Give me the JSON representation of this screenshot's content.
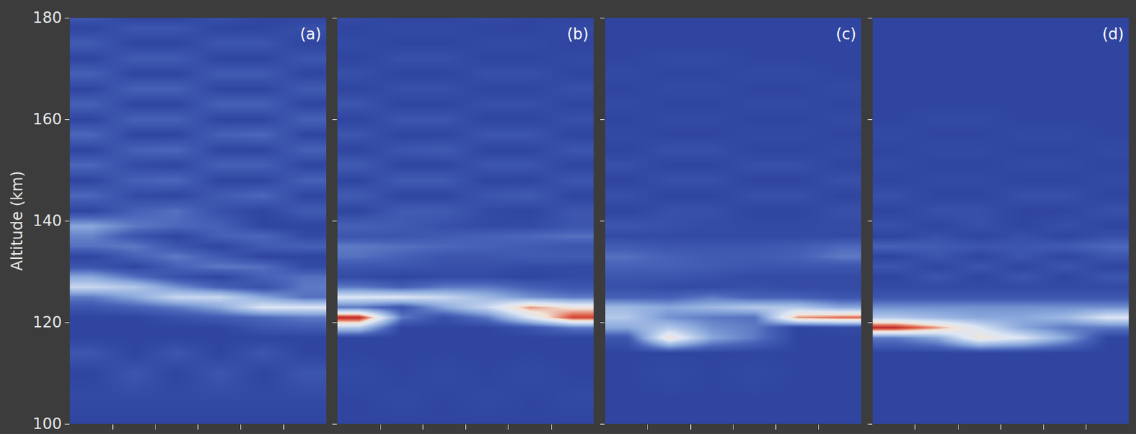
{
  "chart_data": {
    "type": "heatmap",
    "ylabel": "Altitude (km)",
    "ylim": [
      100,
      180
    ],
    "yticks": [
      100,
      120,
      140,
      160,
      180
    ],
    "xlim": [
      0,
      6
    ],
    "xticks": [
      1,
      2,
      3,
      4,
      5
    ],
    "tick_labels": "y",
    "zlim": [
      0,
      100
    ],
    "x": [
      0.5,
      1.5,
      2.5,
      3.5,
      4.5,
      5.5
    ],
    "y": [
      100,
      105,
      110,
      114,
      117,
      119,
      121,
      123,
      125,
      127,
      129,
      131,
      133,
      135,
      137,
      139,
      142,
      145,
      148,
      151,
      154,
      157,
      160,
      163,
      166,
      169,
      172,
      175,
      178,
      180
    ],
    "panels": [
      {
        "label": "(a)",
        "z": [
          [
            14,
            14,
            14,
            14,
            14,
            14
          ],
          [
            16,
            16,
            16,
            16,
            16,
            16
          ],
          [
            14,
            20,
            14,
            20,
            14,
            20
          ],
          [
            20,
            14,
            20,
            14,
            20,
            14
          ],
          [
            14,
            14,
            14,
            14,
            14,
            14
          ],
          [
            14,
            14,
            14,
            14,
            20,
            22
          ],
          [
            14,
            14,
            18,
            22,
            26,
            30
          ],
          [
            20,
            24,
            30,
            40,
            60,
            60
          ],
          [
            30,
            40,
            55,
            55,
            40,
            28
          ],
          [
            55,
            50,
            35,
            24,
            18,
            30
          ],
          [
            40,
            28,
            18,
            14,
            24,
            28
          ],
          [
            20,
            14,
            24,
            30,
            28,
            16
          ],
          [
            14,
            24,
            30,
            22,
            14,
            14
          ],
          [
            28,
            30,
            20,
            14,
            22,
            24
          ],
          [
            32,
            20,
            14,
            24,
            26,
            16
          ],
          [
            40,
            30,
            26,
            24,
            14,
            14
          ],
          [
            14,
            24,
            28,
            18,
            14,
            22
          ],
          [
            26,
            16,
            14,
            22,
            26,
            14
          ],
          [
            14,
            24,
            26,
            14,
            14,
            24
          ],
          [
            26,
            16,
            14,
            24,
            24,
            14
          ],
          [
            14,
            24,
            26,
            14,
            14,
            24
          ],
          [
            26,
            14,
            14,
            24,
            26,
            14
          ],
          [
            14,
            24,
            24,
            14,
            14,
            24
          ],
          [
            24,
            14,
            14,
            24,
            24,
            14
          ],
          [
            14,
            24,
            24,
            14,
            14,
            22
          ],
          [
            24,
            14,
            14,
            22,
            22,
            14
          ],
          [
            14,
            22,
            22,
            14,
            14,
            20
          ],
          [
            22,
            14,
            14,
            20,
            20,
            14
          ],
          [
            14,
            20,
            20,
            14,
            14,
            18
          ],
          [
            20,
            14,
            14,
            18,
            14,
            14
          ]
        ]
      },
      {
        "label": "(b)",
        "z": [
          [
            14,
            14,
            14,
            14,
            14,
            14
          ],
          [
            14,
            16,
            14,
            16,
            14,
            16
          ],
          [
            16,
            14,
            16,
            14,
            16,
            14
          ],
          [
            14,
            14,
            14,
            14,
            14,
            14
          ],
          [
            14,
            14,
            14,
            14,
            14,
            14
          ],
          [
            50,
            14,
            14,
            14,
            20,
            30
          ],
          [
            95,
            30,
            18,
            30,
            60,
            90
          ],
          [
            30,
            20,
            40,
            55,
            80,
            70
          ],
          [
            60,
            60,
            55,
            45,
            35,
            30
          ],
          [
            30,
            24,
            30,
            30,
            24,
            20
          ],
          [
            16,
            14,
            16,
            16,
            14,
            16
          ],
          [
            20,
            20,
            18,
            18,
            16,
            16
          ],
          [
            28,
            24,
            20,
            20,
            22,
            22
          ],
          [
            30,
            28,
            26,
            24,
            22,
            20
          ],
          [
            20,
            20,
            22,
            24,
            26,
            28
          ],
          [
            24,
            22,
            18,
            16,
            16,
            20
          ],
          [
            14,
            22,
            22,
            16,
            14,
            20
          ],
          [
            22,
            14,
            14,
            20,
            22,
            14
          ],
          [
            14,
            22,
            22,
            14,
            14,
            20
          ],
          [
            22,
            14,
            14,
            20,
            20,
            14
          ],
          [
            14,
            20,
            22,
            14,
            14,
            20
          ],
          [
            20,
            14,
            14,
            20,
            20,
            14
          ],
          [
            14,
            20,
            20,
            14,
            14,
            18
          ],
          [
            20,
            14,
            14,
            18,
            18,
            14
          ],
          [
            14,
            18,
            18,
            14,
            14,
            18
          ],
          [
            18,
            14,
            14,
            18,
            18,
            14
          ],
          [
            14,
            18,
            18,
            14,
            14,
            16
          ],
          [
            16,
            14,
            14,
            16,
            16,
            14
          ],
          [
            14,
            16,
            16,
            14,
            14,
            16
          ],
          [
            16,
            14,
            14,
            16,
            14,
            14
          ]
        ]
      },
      {
        "label": "(c)",
        "z": [
          [
            14,
            14,
            14,
            14,
            14,
            14
          ],
          [
            14,
            14,
            14,
            14,
            14,
            14
          ],
          [
            14,
            16,
            14,
            16,
            14,
            14
          ],
          [
            14,
            14,
            14,
            14,
            14,
            14
          ],
          [
            20,
            70,
            40,
            30,
            14,
            14
          ],
          [
            40,
            50,
            35,
            30,
            14,
            16
          ],
          [
            50,
            35,
            30,
            28,
            80,
            85
          ],
          [
            45,
            40,
            45,
            50,
            50,
            40
          ],
          [
            24,
            24,
            30,
            24,
            24,
            20
          ],
          [
            18,
            16,
            16,
            18,
            16,
            16
          ],
          [
            20,
            20,
            18,
            16,
            16,
            16
          ],
          [
            24,
            24,
            22,
            20,
            20,
            20
          ],
          [
            28,
            24,
            22,
            22,
            24,
            30
          ],
          [
            22,
            20,
            20,
            20,
            22,
            26
          ],
          [
            16,
            16,
            16,
            16,
            16,
            16
          ],
          [
            20,
            18,
            16,
            16,
            16,
            16
          ],
          [
            14,
            18,
            18,
            14,
            14,
            18
          ],
          [
            18,
            14,
            14,
            18,
            18,
            14
          ],
          [
            14,
            18,
            18,
            14,
            14,
            18
          ],
          [
            18,
            14,
            14,
            18,
            18,
            14
          ],
          [
            14,
            18,
            18,
            14,
            14,
            16
          ],
          [
            16,
            14,
            14,
            16,
            16,
            14
          ],
          [
            14,
            16,
            16,
            14,
            14,
            16
          ],
          [
            16,
            14,
            14,
            16,
            16,
            14
          ],
          [
            14,
            16,
            16,
            14,
            14,
            16
          ],
          [
            16,
            14,
            14,
            16,
            16,
            14
          ],
          [
            14,
            16,
            16,
            14,
            14,
            14
          ],
          [
            14,
            14,
            14,
            14,
            14,
            14
          ],
          [
            14,
            14,
            14,
            14,
            14,
            14
          ],
          [
            14,
            14,
            14,
            14,
            14,
            14
          ]
        ]
      },
      {
        "label": "(d)",
        "z": [
          [
            14,
            14,
            14,
            14,
            14,
            14
          ],
          [
            14,
            14,
            14,
            14,
            14,
            14
          ],
          [
            14,
            14,
            14,
            14,
            14,
            14
          ],
          [
            14,
            14,
            14,
            14,
            14,
            14
          ],
          [
            30,
            40,
            70,
            60,
            40,
            14
          ],
          [
            95,
            80,
            60,
            40,
            30,
            30
          ],
          [
            50,
            45,
            40,
            40,
            45,
            60
          ],
          [
            35,
            35,
            35,
            35,
            35,
            35
          ],
          [
            20,
            20,
            20,
            20,
            20,
            20
          ],
          [
            16,
            16,
            16,
            16,
            16,
            16
          ],
          [
            14,
            20,
            14,
            20,
            14,
            20
          ],
          [
            20,
            14,
            20,
            14,
            20,
            14
          ],
          [
            14,
            20,
            14,
            20,
            14,
            20
          ],
          [
            24,
            22,
            20,
            20,
            22,
            26
          ],
          [
            14,
            18,
            14,
            18,
            14,
            18
          ],
          [
            18,
            14,
            18,
            14,
            18,
            14
          ],
          [
            14,
            18,
            18,
            14,
            14,
            18
          ],
          [
            18,
            14,
            14,
            18,
            18,
            14
          ],
          [
            14,
            16,
            16,
            14,
            14,
            16
          ],
          [
            16,
            14,
            14,
            16,
            16,
            14
          ],
          [
            14,
            16,
            16,
            14,
            14,
            16
          ],
          [
            16,
            14,
            14,
            16,
            16,
            14
          ],
          [
            14,
            16,
            16,
            14,
            14,
            14
          ],
          [
            14,
            14,
            14,
            14,
            14,
            14
          ],
          [
            14,
            14,
            14,
            14,
            14,
            14
          ],
          [
            14,
            14,
            14,
            14,
            14,
            14
          ],
          [
            14,
            14,
            14,
            14,
            14,
            14
          ],
          [
            14,
            14,
            14,
            14,
            14,
            14
          ],
          [
            14,
            14,
            14,
            14,
            14,
            14
          ],
          [
            14,
            14,
            14,
            14,
            14,
            14
          ]
        ]
      }
    ]
  }
}
